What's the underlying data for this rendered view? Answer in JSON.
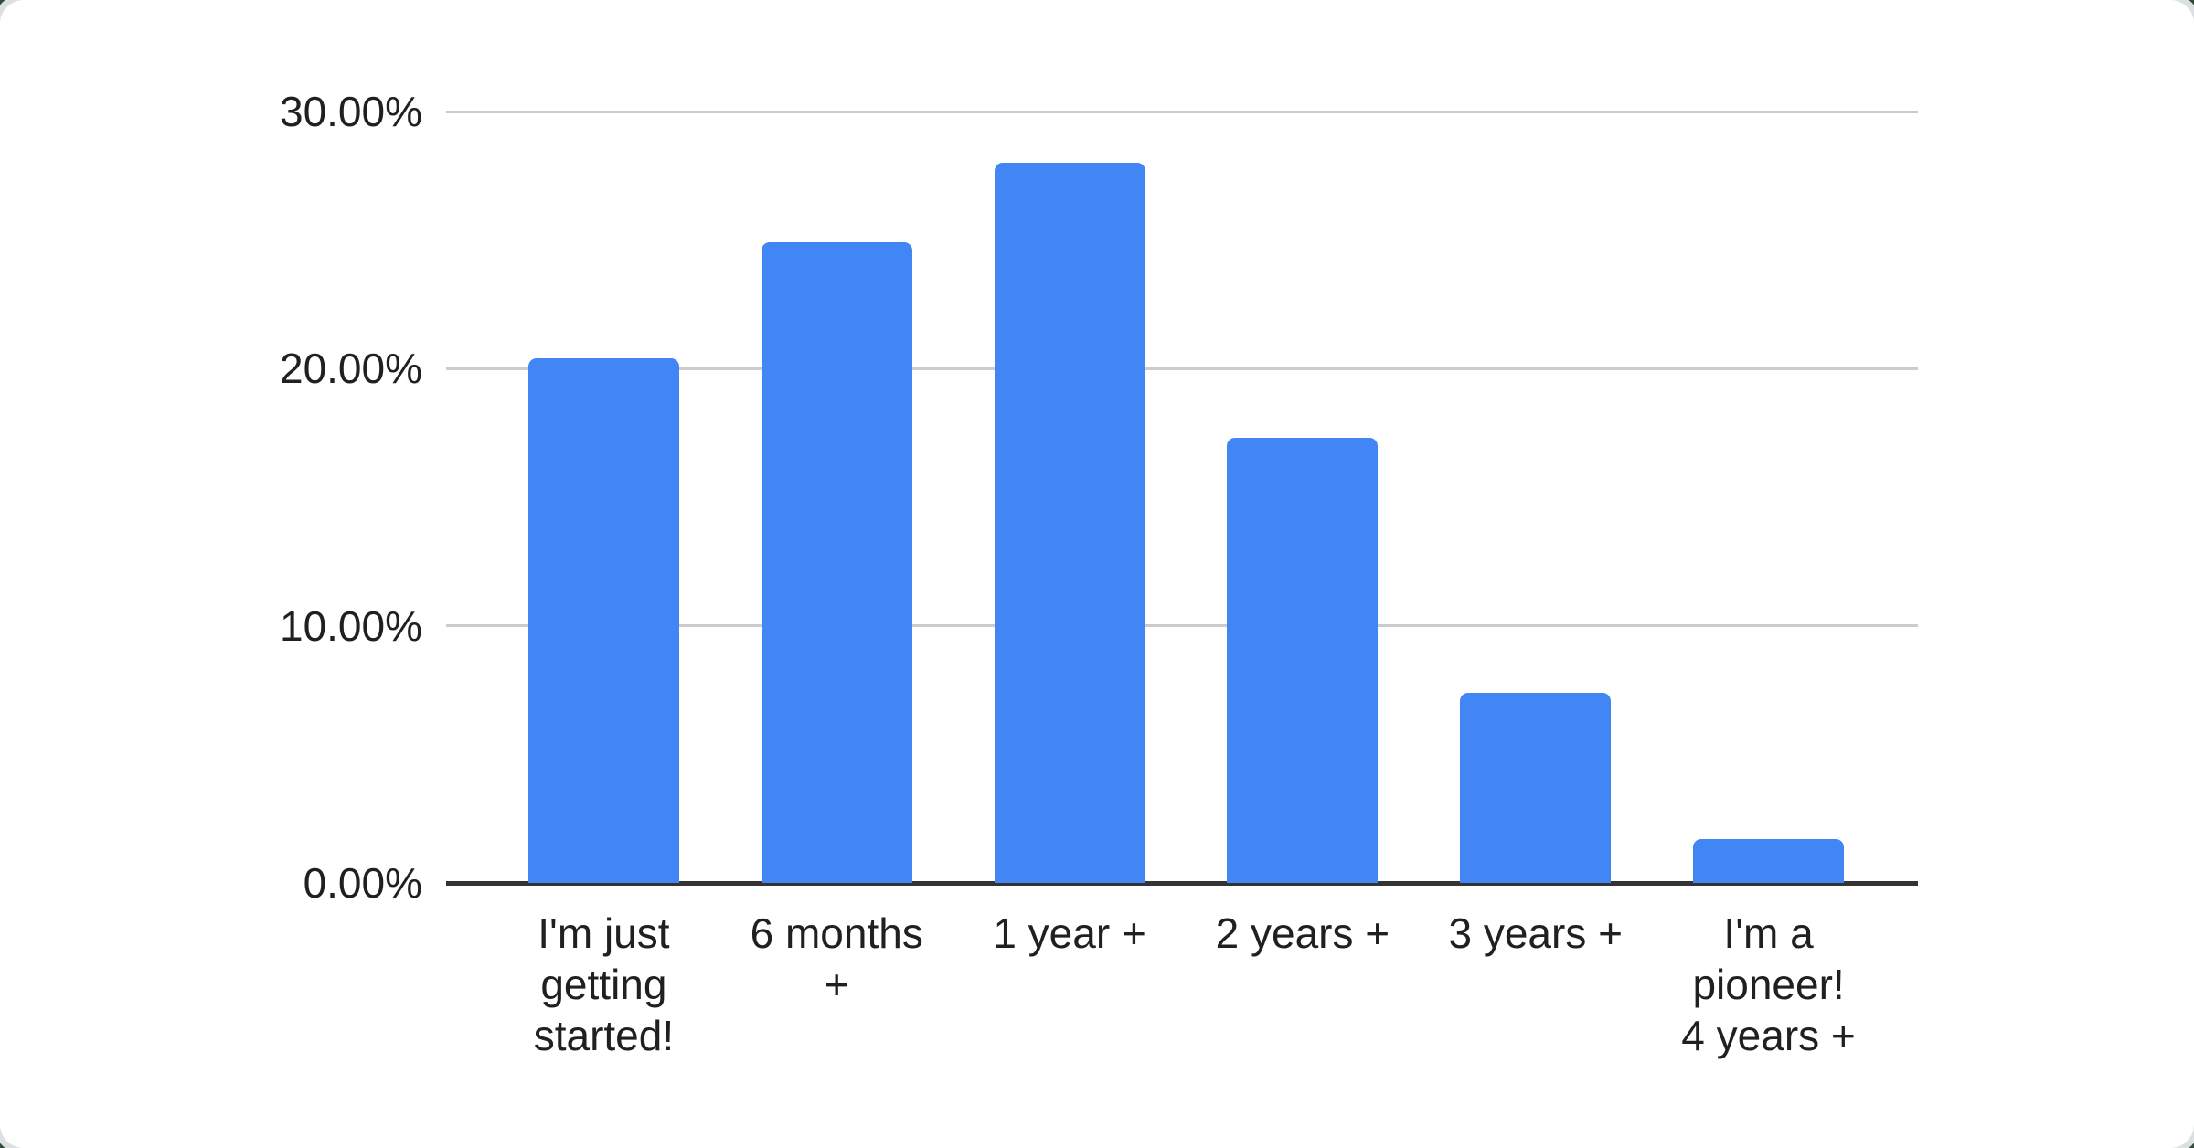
{
  "page": {
    "background_color": "#2F4D38",
    "card_color": "#FFFFFF",
    "card_rim_color": "#DDE0E3"
  },
  "chart_data": {
    "type": "bar",
    "title": "",
    "xlabel": "",
    "ylabel": "",
    "categories": [
      "I'm just getting started!",
      "6 months +",
      "1 year +",
      "2 years +",
      "3 years +",
      "I'm a pioneer! 4 years +"
    ],
    "category_label_lines": [
      [
        "I'm just",
        "getting",
        "started!"
      ],
      [
        "6 months",
        "+"
      ],
      [
        "1 year +"
      ],
      [
        "2 years +"
      ],
      [
        "3 years +"
      ],
      [
        "I'm a",
        "pioneer!",
        "4 years +"
      ]
    ],
    "values": [
      20.4,
      24.9,
      28.0,
      17.3,
      7.4,
      1.7
    ],
    "value_unit": "%",
    "ylim": [
      0,
      30
    ],
    "y_ticks": [
      {
        "label": "30.00%",
        "value": 30
      },
      {
        "label": "20.00%",
        "value": 20
      },
      {
        "label": "10.00%",
        "value": 10
      },
      {
        "label": "0.00%",
        "value": 0
      }
    ],
    "grid": true,
    "legend": "none",
    "bar_color": "#4285F4",
    "gridline_color": "#CCCCCC",
    "axis_line_color": "#333333",
    "label_color": "#202020"
  }
}
